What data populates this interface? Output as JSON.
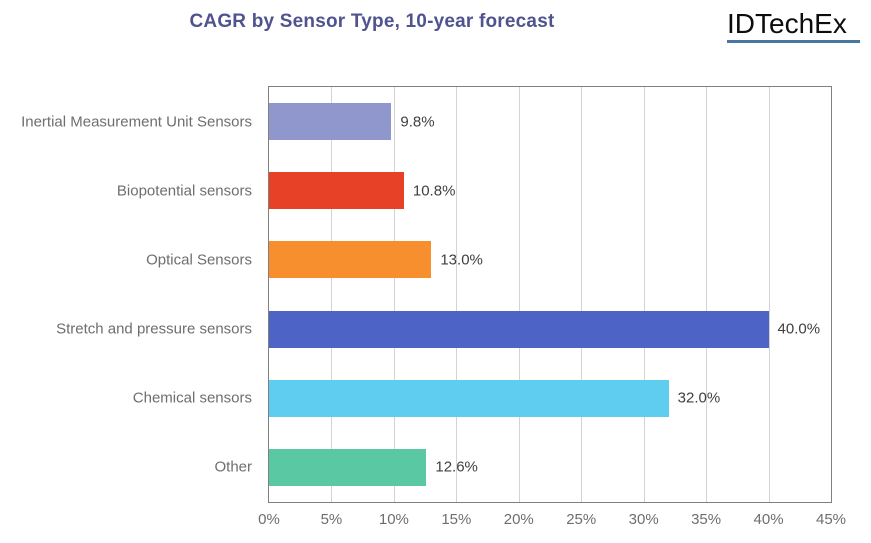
{
  "header": {
    "title": "CAGR by Sensor Type, 10-year forecast",
    "logo_text": "IDTechEx"
  },
  "colors": {
    "title": "#4f538e",
    "logo_underline": "#4677a0",
    "plot_border": "#808080",
    "grid": "#d3d3d3",
    "category_label": "#6e6e6e",
    "value_label": "#3f3f3f",
    "tick_label": "#6e6e6e"
  },
  "chart_data": {
    "type": "bar",
    "orientation": "horizontal",
    "title": "CAGR by Sensor Type, 10-year forecast",
    "categories": [
      "Inertial Measurement Unit Sensors",
      "Biopotential sensors",
      "Optical Sensors",
      "Stretch and pressure sensors",
      "Chemical sensors",
      "Other"
    ],
    "values": [
      9.8,
      10.8,
      13.0,
      40.0,
      32.0,
      12.6
    ],
    "value_labels": [
      "9.8%",
      "10.8%",
      "13.0%",
      "40.0%",
      "32.0%",
      "12.6%"
    ],
    "bar_colors": [
      "#8f97cd",
      "#e74128",
      "#f78f2e",
      "#4d64c6",
      "#5ecdf0",
      "#5ac8a2"
    ],
    "xlabel": "",
    "ylabel": "",
    "xlim": [
      0,
      45
    ],
    "x_ticks": [
      "0%",
      "5%",
      "10%",
      "15%",
      "20%",
      "25%",
      "30%",
      "35%",
      "40%",
      "45%"
    ],
    "grid": "vertical",
    "legend": "none"
  }
}
